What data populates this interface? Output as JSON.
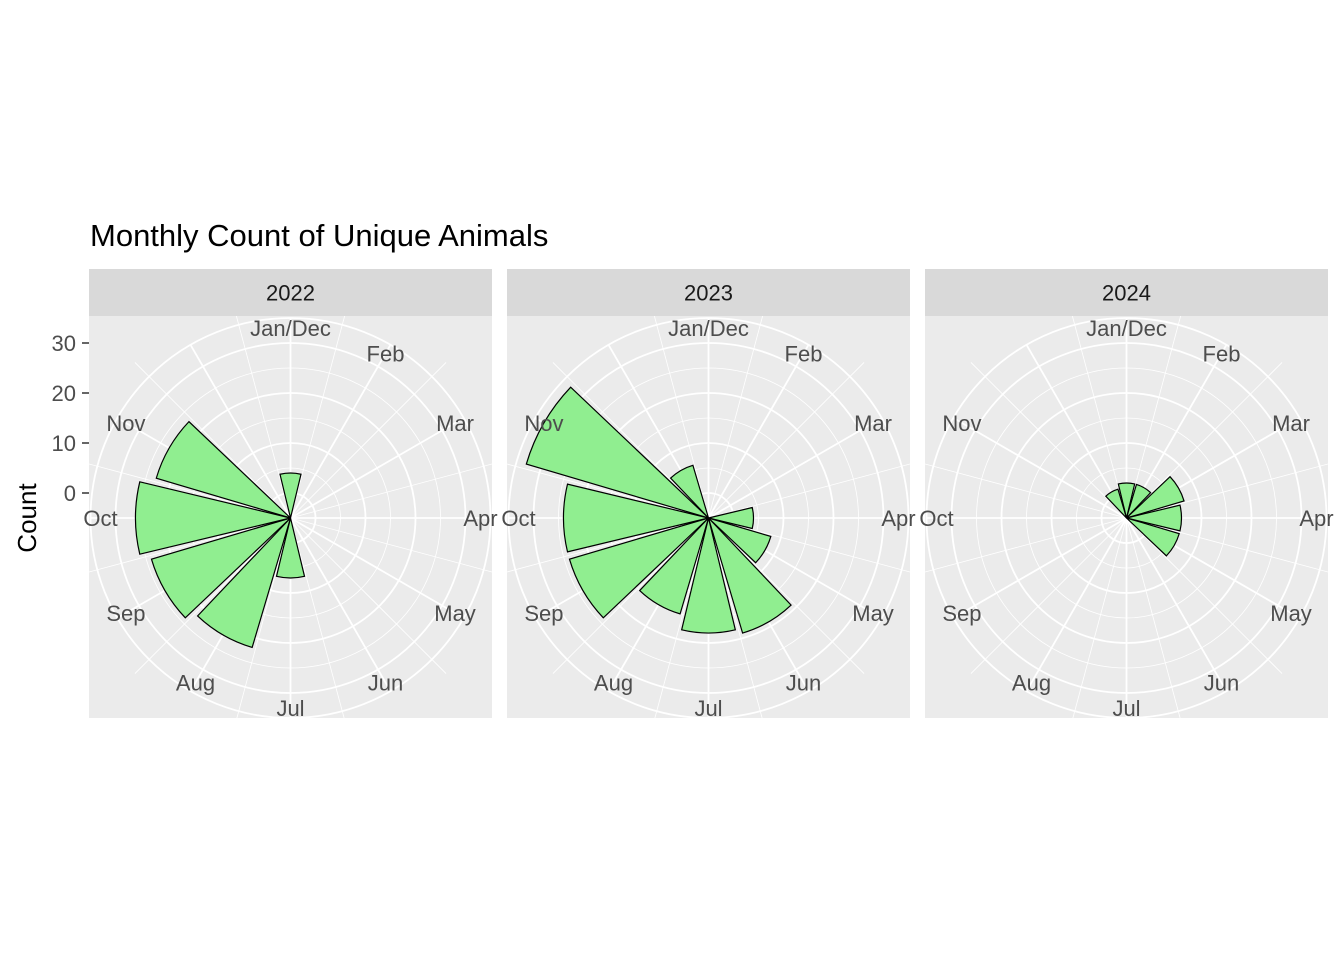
{
  "chart_data": {
    "type": "polar-bar",
    "title": "Monthly Count of Unique Animals",
    "ylabel": "Count",
    "xlabel": "",
    "yticks": [
      0,
      10,
      20,
      30
    ],
    "ylim": [
      -5,
      35
    ],
    "month_labels": [
      "Jan/Dec",
      "Feb",
      "Mar",
      "Apr",
      "May",
      "Jun",
      "Jul",
      "Aug",
      "Sep",
      "Oct",
      "Nov"
    ],
    "grid": true,
    "colors": {
      "fill": "#90EE90",
      "outline": "#000000",
      "panel": "#EBEBEB",
      "strip": "#D9D9D9"
    },
    "panels": [
      {
        "label": "2022",
        "bars": [
          {
            "month": 6,
            "value": 7
          },
          {
            "month": 7,
            "value": 22
          },
          {
            "month": 8,
            "value": 24
          },
          {
            "month": 9,
            "value": 26
          },
          {
            "month": 10,
            "value": 23
          },
          {
            "month": 12,
            "value": 4
          }
        ]
      },
      {
        "label": "2023",
        "bars": [
          {
            "month": 3,
            "value": 4
          },
          {
            "month": 4,
            "value": 8
          },
          {
            "month": 5,
            "value": 19
          },
          {
            "month": 6,
            "value": 18
          },
          {
            "month": 7,
            "value": 15
          },
          {
            "month": 8,
            "value": 24
          },
          {
            "month": 9,
            "value": 24
          },
          {
            "month": 10,
            "value": 33
          },
          {
            "month": 11,
            "value": 6
          }
        ]
      },
      {
        "label": "2024",
        "bars": [
          {
            "month": 1,
            "value": 2
          },
          {
            "month": 2,
            "value": 7
          },
          {
            "month": 3,
            "value": 6
          },
          {
            "month": 4,
            "value": 6
          },
          {
            "month": 11,
            "value": 1
          },
          {
            "month": 12,
            "value": 2
          }
        ]
      }
    ]
  }
}
